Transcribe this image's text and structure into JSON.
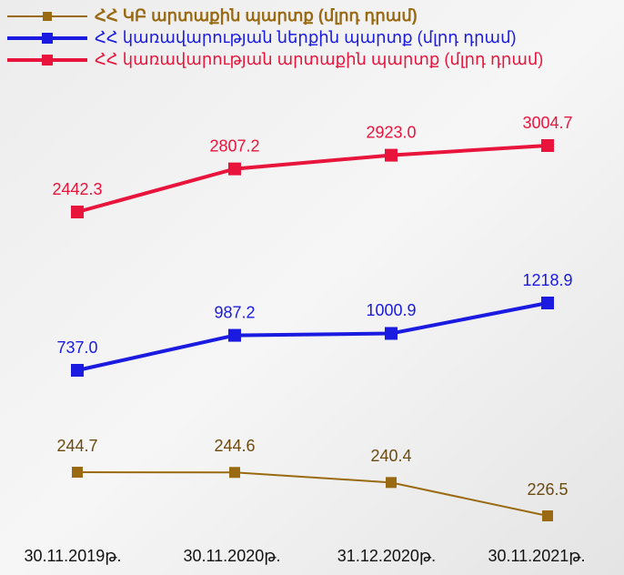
{
  "chart_data": {
    "type": "line",
    "categories": [
      "30.11.2019թ.",
      "30.11.2020թ.",
      "31.12.2020թ.",
      "30.11.2021թ."
    ],
    "series": [
      {
        "name": "ՀՀ ԿԲ արտաքին պարտք (մլրդ դրամ)",
        "color": "#9a6a12",
        "values": [
          244.7,
          244.6,
          240.4,
          226.5
        ],
        "value_labels": [
          "244.7",
          "244.6",
          "240.4",
          "226.5"
        ]
      },
      {
        "name": "ՀՀ կառավարության ներքին պարտք (մլրդ դրամ)",
        "color": "#1a1ae0",
        "values": [
          737.0,
          987.2,
          1000.9,
          1218.9
        ],
        "value_labels": [
          "737.0",
          "987.2",
          "1000.9",
          "1218.9"
        ]
      },
      {
        "name": "ՀՀ կառավարության արտաքին պարտք (մլրդ դրամ)",
        "color": "#e8143c",
        "values": [
          2442.3,
          2807.2,
          2923.0,
          3004.7
        ],
        "value_labels": [
          "2442.3",
          "2807.2",
          "2923.0",
          "3004.7"
        ]
      }
    ],
    "legend": "top-left"
  }
}
